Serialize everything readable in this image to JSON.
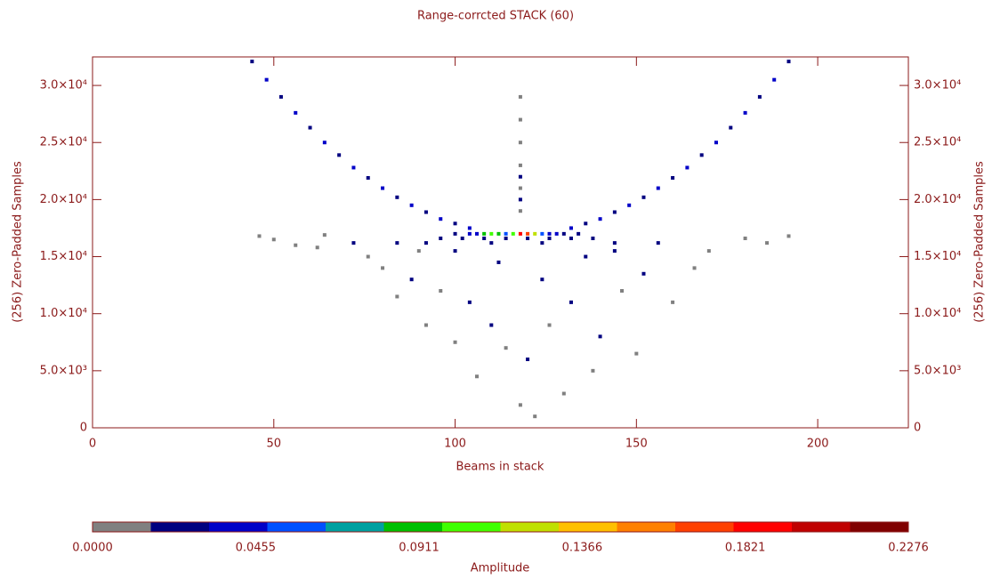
{
  "chart_data": {
    "type": "heatmap",
    "title": "Range-corrcted STACK (60)",
    "xlabel": "Beams in stack",
    "ylabel": "(256) Zero-Padded Samples",
    "colorbar_label": "Amplitude",
    "xlim": [
      0,
      225
    ],
    "xticks": [
      0,
      50,
      100,
      150,
      200
    ],
    "ylim": [
      0,
      32500
    ],
    "yticks": [
      0,
      {
        "value": 5000,
        "label": "5.0×10³"
      },
      {
        "value": 10000,
        "label": "1.0×10⁴"
      },
      {
        "value": 15000,
        "label": "1.5×10⁴"
      },
      {
        "value": 20000,
        "label": "2.0×10⁴"
      },
      {
        "value": 25000,
        "label": "2.5×10⁴"
      },
      {
        "value": 30000,
        "label": "3.0×10⁴"
      }
    ],
    "clim": [
      0,
      0.2276
    ],
    "cticks": [
      {
        "value": 0,
        "label": "0.0000"
      },
      {
        "value": 0.0455,
        "label": "0.0455"
      },
      {
        "value": 0.0911,
        "label": "0.0911"
      },
      {
        "value": 0.1366,
        "label": "0.1366"
      },
      {
        "value": 0.1821,
        "label": "0.1821"
      },
      {
        "value": 0.2276,
        "label": "0.2276"
      }
    ],
    "colormap": [
      "#808080",
      "#000080",
      "#0000c8",
      "#0050ff",
      "#00a0a0",
      "#00c000",
      "#40ff00",
      "#c0e000",
      "#ffc000",
      "#ff8000",
      "#ff4000",
      "#ff0000",
      "#c00000",
      "#800000"
    ],
    "x": [
      44,
      48,
      52,
      56,
      60,
      64,
      68,
      72,
      76,
      80,
      84,
      88,
      92,
      96,
      100,
      104,
      132,
      136,
      140,
      144,
      148,
      152,
      156,
      160,
      164,
      168,
      172,
      176,
      180,
      184,
      188,
      192,
      100,
      104,
      106,
      108,
      110,
      112,
      114,
      116,
      118,
      120,
      122,
      124,
      126,
      128,
      130,
      134,
      96,
      102,
      108,
      114,
      120,
      126,
      132,
      138,
      72,
      84,
      92,
      110,
      124,
      144,
      156,
      118,
      118,
      118,
      118,
      118,
      118,
      118,
      118,
      46,
      50,
      56,
      64,
      180,
      186,
      192,
      80,
      88,
      96,
      104,
      110,
      114,
      120,
      126,
      132,
      138,
      140,
      146,
      152,
      160,
      166,
      100,
      106,
      118,
      122,
      130,
      92,
      84,
      150,
      112,
      124,
      136,
      100,
      90,
      144,
      76,
      62,
      170
    ],
    "y": [
      32100,
      30500,
      29000,
      27600,
      26300,
      25000,
      23900,
      22800,
      21900,
      21000,
      20200,
      19500,
      18900,
      18300,
      17900,
      17500,
      17500,
      17900,
      18300,
      18900,
      19500,
      20200,
      21000,
      21900,
      22800,
      23900,
      25000,
      26300,
      27600,
      29000,
      30500,
      32100,
      17000,
      17000,
      17000,
      17000,
      17000,
      17000,
      17000,
      17000,
      17000,
      17000,
      17000,
      17000,
      17000,
      17000,
      17000,
      17000,
      16600,
      16600,
      16600,
      16600,
      16600,
      16600,
      16600,
      16600,
      16200,
      16200,
      16200,
      16200,
      16200,
      16200,
      16200,
      19000,
      21000,
      23000,
      25000,
      27000,
      29000,
      20000,
      22000,
      16800,
      16500,
      16000,
      16900,
      16600,
      16200,
      16800,
      14000,
      13000,
      12000,
      11000,
      9000,
      7000,
      6000,
      9000,
      11000,
      5000,
      8000,
      12000,
      13500,
      11000,
      14000,
      7500,
      4500,
      2000,
      1000,
      3000,
      9000,
      11500,
      6500,
      14500,
      13000,
      15000,
      15500,
      15500,
      15500,
      15000,
      15800,
      15500
    ],
    "values": [
      0.03,
      0.04,
      0.03,
      0.04,
      0.03,
      0.04,
      0.03,
      0.04,
      0.03,
      0.04,
      0.03,
      0.04,
      0.03,
      0.04,
      0.03,
      0.04,
      0.04,
      0.03,
      0.04,
      0.03,
      0.04,
      0.03,
      0.04,
      0.03,
      0.04,
      0.03,
      0.04,
      0.03,
      0.04,
      0.03,
      0.04,
      0.03,
      0.03,
      0.035,
      0.04,
      0.09,
      0.1,
      0.09,
      0.06,
      0.11,
      0.19,
      0.17,
      0.12,
      0.06,
      0.04,
      0.035,
      0.03,
      0.03,
      0.03,
      0.03,
      0.03,
      0.03,
      0.03,
      0.03,
      0.03,
      0.03,
      0.025,
      0.025,
      0.025,
      0.025,
      0.025,
      0.025,
      0.025,
      0.002,
      0.002,
      0.002,
      0.002,
      0.002,
      0.002,
      0.03,
      0.025,
      0.002,
      0.002,
      0.002,
      0.002,
      0.002,
      0.002,
      0.002,
      0.002,
      0.025,
      0.002,
      0.03,
      0.025,
      0.002,
      0.03,
      0.002,
      0.03,
      0.002,
      0.025,
      0.002,
      0.025,
      0.002,
      0.002,
      0.002,
      0.002,
      0.002,
      0.002,
      0.002,
      0.002,
      0.002,
      0.002,
      0.03,
      0.03,
      0.03,
      0.03,
      0.002,
      0.025,
      0.002,
      0.002,
      0.002
    ]
  }
}
